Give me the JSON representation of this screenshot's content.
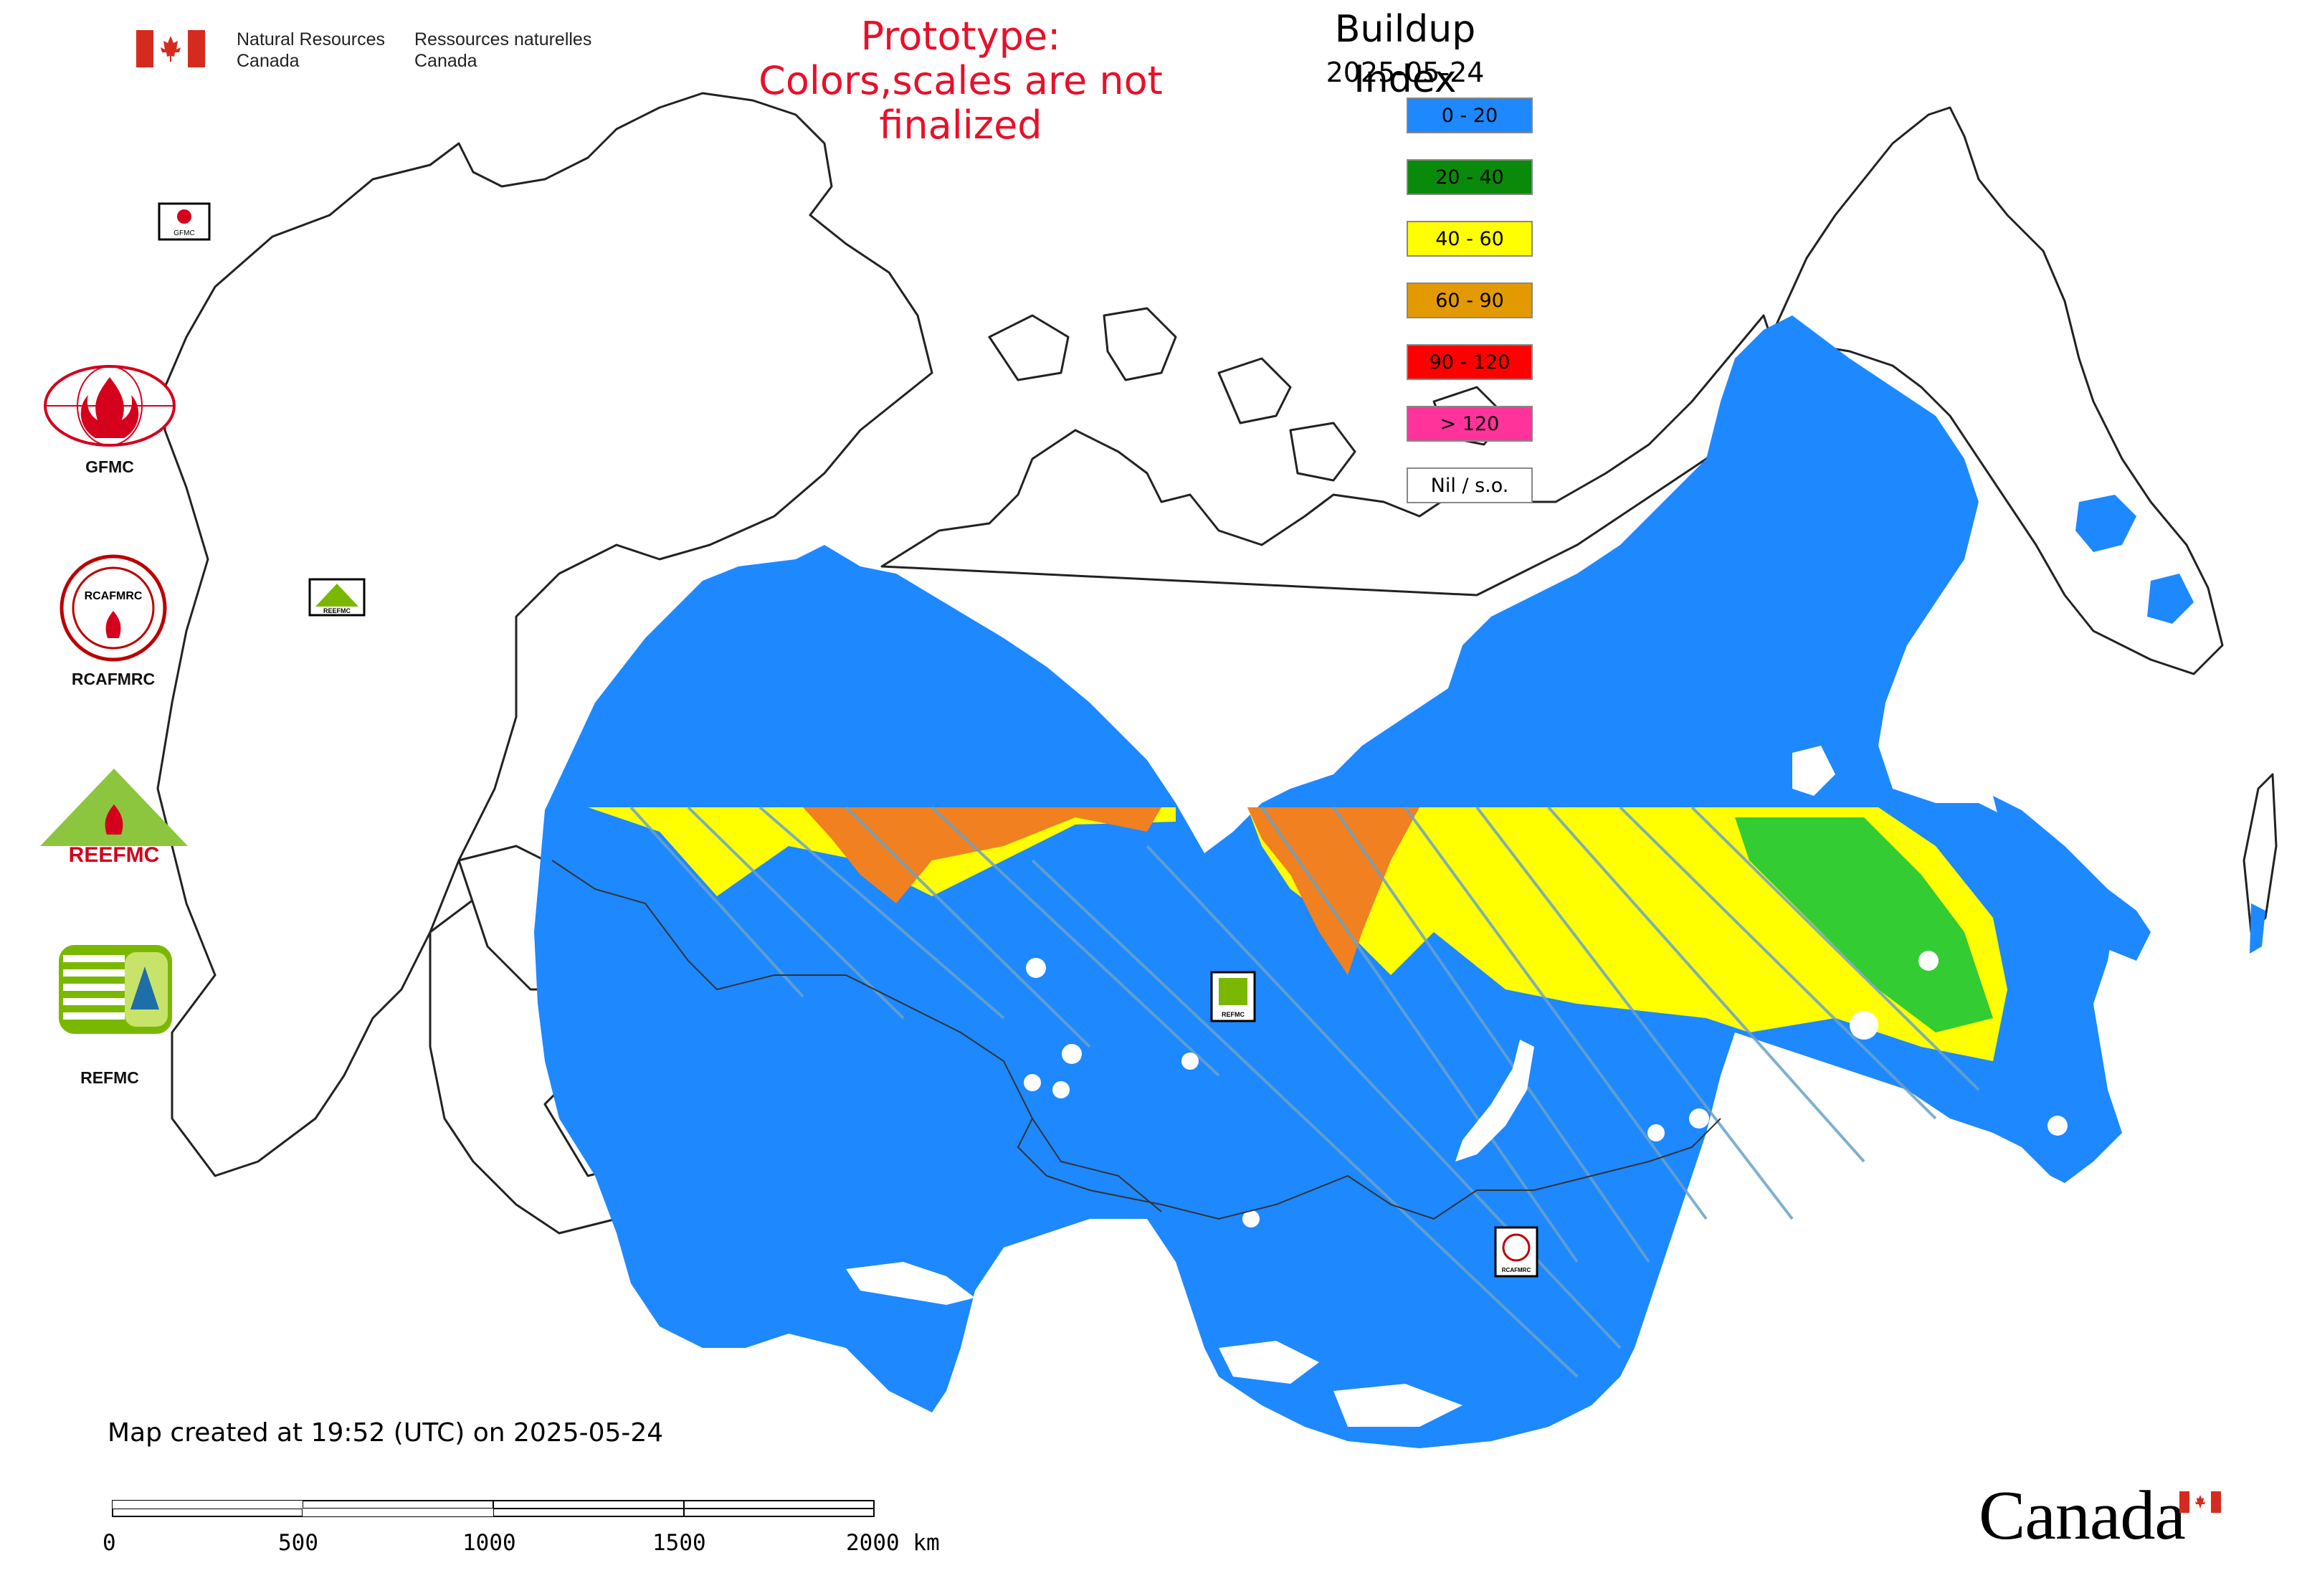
{
  "header": {
    "dept_en_line1": "Natural Resources",
    "dept_en_line2": "Canada",
    "dept_fr_line1": "Ressources naturelles",
    "dept_fr_line2": "Canada"
  },
  "prototype_note": {
    "line1": "Prototype:",
    "line2": "Colors,scales are not finalized",
    "color": "#e8102a"
  },
  "legend": {
    "title": "Buildup Index",
    "date": "2025-05-24",
    "items": [
      {
        "label": "0 - 20",
        "color": "#1e88ff"
      },
      {
        "label": "20 - 40",
        "color": "#0a8a0a"
      },
      {
        "label": "40 - 60",
        "color": "#ffff00"
      },
      {
        "label": "60 - 90",
        "color": "#e39a00"
      },
      {
        "label": "90 - 120",
        "color": "#ff0000"
      },
      {
        "label": "> 120",
        "color": "#ff3399"
      },
      {
        "label": "Nil / s.o.",
        "color": "#ffffff"
      }
    ]
  },
  "logos": [
    {
      "name": "GFMC",
      "icon": "gfmc-logo-icon"
    },
    {
      "name": "RCAFMRC",
      "icon": "rcafmrc-logo-icon"
    },
    {
      "name": "REEFMC",
      "icon": "reefmc-logo-icon"
    },
    {
      "name": "REFMC",
      "icon": "refmc-logo-icon"
    }
  ],
  "map_markers": {
    "gfmc": "GFMC",
    "reefmc": "REEFMC",
    "refmc": "REFMC",
    "rcafmrc": "RCAFMRC"
  },
  "footer": {
    "created": "Map created at 19:52 (UTC) on 2025-05-24",
    "scale_labels": [
      "0",
      "500",
      "1000",
      "1500",
      "2000 km"
    ],
    "wordmark": "Canada"
  },
  "colors": {
    "land_outline": "#222222",
    "low_class": "#1e88ff",
    "moderate_class": "#ffff00",
    "high_class": "#f08020",
    "green_class": "#33cc33"
  }
}
